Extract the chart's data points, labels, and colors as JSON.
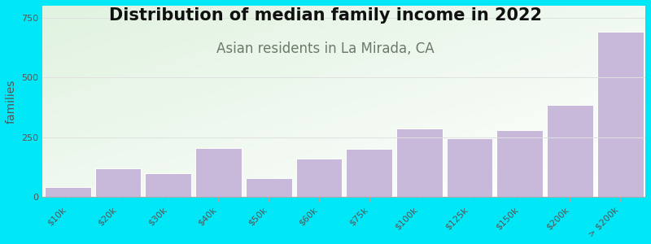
{
  "title": "Distribution of median family income in 2022",
  "subtitle": "Asian residents in La Mirada, CA",
  "ylabel": "families",
  "categories": [
    "$10k",
    "$20k",
    "$30k",
    "$40k",
    "$50k",
    "$60k",
    "$75k",
    "$100k",
    "$125k",
    "$150k",
    "$200k",
    "> $200k"
  ],
  "values": [
    42,
    118,
    100,
    205,
    78,
    160,
    200,
    285,
    245,
    280,
    385,
    690
  ],
  "bar_color": "#c8b8d9",
  "bar_edge_color": "#ffffff",
  "background_outer": "#00e8f8",
  "bg_top_left": "#d0e8d0",
  "bg_top_right": "#f0f8f0",
  "bg_bottom": "#e0f0e8",
  "title_fontsize": 15,
  "subtitle_fontsize": 12,
  "subtitle_color": "#6a7a6a",
  "ylabel_fontsize": 10,
  "tick_fontsize": 8,
  "ylim": [
    0,
    800
  ],
  "yticks": [
    0,
    250,
    500,
    750
  ],
  "grid_color": "#e0e0e0",
  "tick_color": "#555555"
}
